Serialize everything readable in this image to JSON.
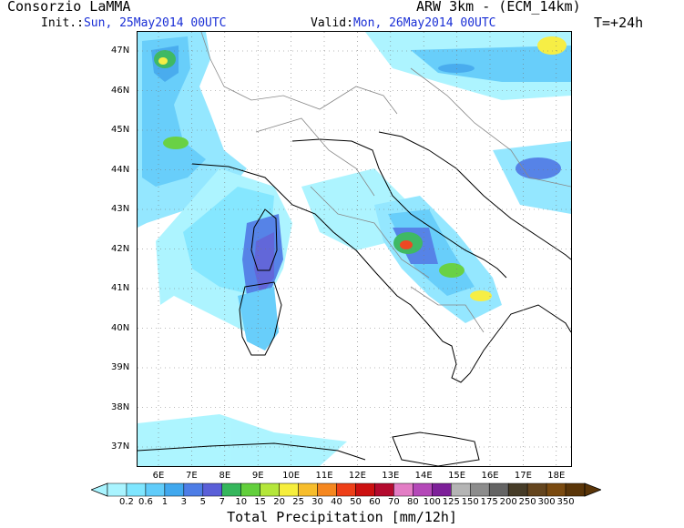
{
  "header": {
    "provider": "Consorzio LaMMA",
    "model": "ARW 3km - (ECM_14km)",
    "init_label": "Init.:",
    "init_value": "Sun, 25May2014 00UTC",
    "valid_label": "Valid:",
    "valid_value": "Mon, 26May2014 00UTC",
    "lead_time": "T=+24h"
  },
  "axes": {
    "lat_labels": [
      "47N",
      "46N",
      "45N",
      "44N",
      "43N",
      "42N",
      "41N",
      "40N",
      "39N",
      "38N",
      "37N"
    ],
    "lon_labels": [
      "6E",
      "7E",
      "8E",
      "9E",
      "10E",
      "11E",
      "12E",
      "13E",
      "14E",
      "15E",
      "16E",
      "17E",
      "18E"
    ]
  },
  "colorbar": {
    "title": "Total Precipitation [mm/12h]",
    "labels": [
      "0.2",
      "0.6",
      "1",
      "3",
      "5",
      "7",
      "10",
      "15",
      "20",
      "25",
      "30",
      "40",
      "50",
      "60",
      "70",
      "80",
      "100",
      "125",
      "150",
      "175",
      "200",
      "250",
      "300",
      "350"
    ],
    "colors": [
      "#a9f4ff",
      "#7fe6ff",
      "#60ccfa",
      "#40a8ee",
      "#4d7de6",
      "#5a5fd8",
      "#35b65c",
      "#62cf3c",
      "#b4e63a",
      "#f6ee3c",
      "#f7bd2b",
      "#f5871f",
      "#ee3f18",
      "#cc1010",
      "#b40a2e",
      "#e37dc5",
      "#b448b8",
      "#7d1f99",
      "#b4b4b4",
      "#8c8c8c",
      "#646464",
      "#463c28",
      "#64451e",
      "#7a4a10",
      "#5a3508"
    ],
    "left_cap": "#a9f4ff",
    "right_cap": "#5a3508"
  }
}
